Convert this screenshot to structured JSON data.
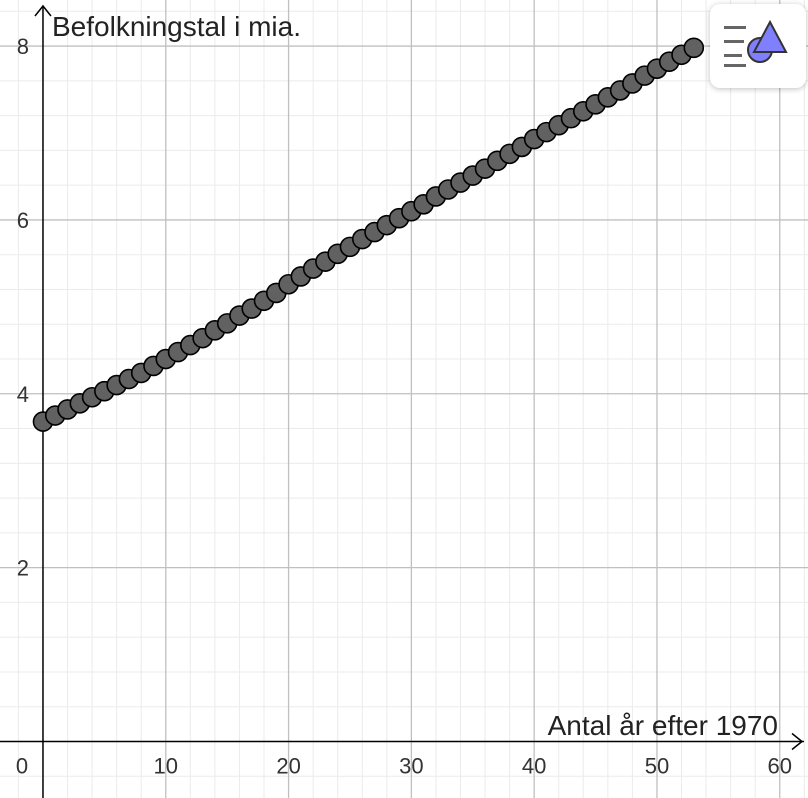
{
  "chart_data": {
    "type": "scatter",
    "xlabel": "Antal år efter 1970",
    "ylabel": "Befolkningstal i mia.",
    "xlim": [
      -3.5,
      62.3
    ],
    "ylim": [
      -0.65,
      8.53
    ],
    "x_ticks": [
      0,
      10,
      20,
      30,
      40,
      50,
      60
    ],
    "y_ticks": [
      2,
      4,
      6,
      8
    ],
    "grid": true,
    "marker_color": "#616161",
    "marker_edge": "#000000",
    "points": [
      [
        0,
        3.68
      ],
      [
        1,
        3.75
      ],
      [
        2,
        3.82
      ],
      [
        3,
        3.89
      ],
      [
        4,
        3.96
      ],
      [
        5,
        4.03
      ],
      [
        6,
        4.1
      ],
      [
        7,
        4.17
      ],
      [
        8,
        4.24
      ],
      [
        9,
        4.32
      ],
      [
        10,
        4.4
      ],
      [
        11,
        4.48
      ],
      [
        12,
        4.56
      ],
      [
        13,
        4.64
      ],
      [
        14,
        4.73
      ],
      [
        15,
        4.81
      ],
      [
        16,
        4.9
      ],
      [
        17,
        4.98
      ],
      [
        18,
        5.07
      ],
      [
        19,
        5.16
      ],
      [
        20,
        5.26
      ],
      [
        21,
        5.35
      ],
      [
        22,
        5.44
      ],
      [
        23,
        5.52
      ],
      [
        24,
        5.61
      ],
      [
        25,
        5.69
      ],
      [
        26,
        5.78
      ],
      [
        27,
        5.86
      ],
      [
        28,
        5.94
      ],
      [
        29,
        6.02
      ],
      [
        30,
        6.1
      ],
      [
        31,
        6.18
      ],
      [
        32,
        6.27
      ],
      [
        33,
        6.35
      ],
      [
        34,
        6.43
      ],
      [
        35,
        6.51
      ],
      [
        36,
        6.59
      ],
      [
        37,
        6.68
      ],
      [
        38,
        6.76
      ],
      [
        39,
        6.84
      ],
      [
        40,
        6.93
      ],
      [
        41,
        7.01
      ],
      [
        42,
        7.09
      ],
      [
        43,
        7.17
      ],
      [
        44,
        7.25
      ],
      [
        45,
        7.33
      ],
      [
        46,
        7.41
      ],
      [
        47,
        7.49
      ],
      [
        48,
        7.57
      ],
      [
        49,
        7.66
      ],
      [
        50,
        7.74
      ],
      [
        51,
        7.82
      ],
      [
        52,
        7.9
      ],
      [
        53,
        7.98
      ]
    ]
  },
  "style_bar": {
    "icon": "graphics-style-icon"
  },
  "colors": {
    "accent": "#8080ff",
    "grid_major": "#c0c0c0",
    "grid_minor": "#ebebeb",
    "axis": "#000000"
  }
}
